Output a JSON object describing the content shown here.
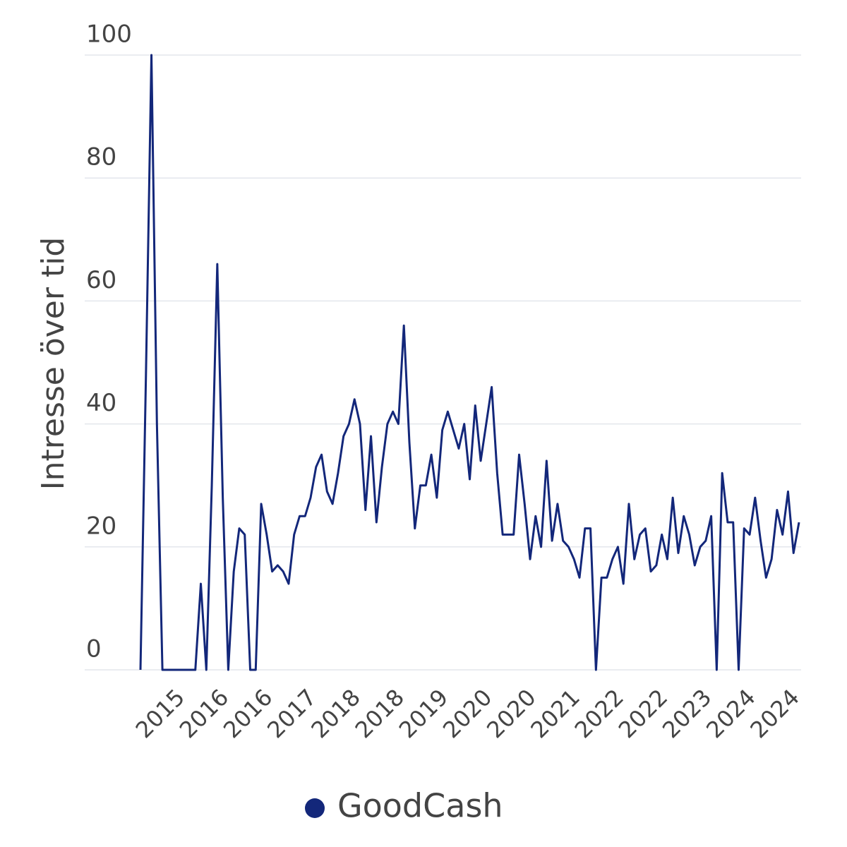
{
  "chart_data": {
    "type": "line",
    "y_label": "Intresse över tid",
    "categories": [
      null,
      null,
      null,
      null,
      null,
      null,
      null,
      "2015",
      null,
      null,
      null,
      null,
      null,
      null,
      null,
      "2016",
      null,
      null,
      null,
      null,
      null,
      null,
      null,
      "2016",
      null,
      null,
      null,
      null,
      null,
      null,
      null,
      "2017",
      null,
      null,
      null,
      null,
      null,
      null,
      null,
      "2018",
      null,
      null,
      null,
      null,
      null,
      null,
      null,
      "2018",
      null,
      null,
      null,
      null,
      null,
      null,
      null,
      "2019",
      null,
      null,
      null,
      null,
      null,
      null,
      null,
      "2020",
      null,
      null,
      null,
      null,
      null,
      null,
      null,
      "2020",
      null,
      null,
      null,
      null,
      null,
      null,
      null,
      "2021",
      null,
      null,
      null,
      null,
      null,
      null,
      null,
      "2022",
      null,
      null,
      null,
      null,
      null,
      null,
      null,
      "2022",
      null,
      null,
      null,
      null,
      null,
      null,
      null,
      "2023",
      null,
      null,
      null,
      null,
      null,
      null,
      null,
      "2024",
      null,
      null,
      null,
      null,
      null,
      null,
      null,
      "2024",
      null
    ],
    "series": [
      {
        "name": "GoodCash",
        "color": "#13277a",
        "values": [
          0,
          48,
          100,
          40,
          0,
          0,
          0,
          0,
          0,
          0,
          0,
          14,
          0,
          30,
          66,
          28,
          0,
          16,
          23,
          22,
          0,
          0,
          27,
          22,
          16,
          17,
          16,
          14,
          22,
          25,
          25,
          28,
          33,
          35,
          29,
          27,
          32,
          38,
          40,
          44,
          40,
          26,
          38,
          24,
          33,
          40,
          42,
          40,
          56,
          37,
          23,
          30,
          30,
          35,
          28,
          39,
          42,
          39,
          36,
          40,
          31,
          43,
          34,
          40,
          46,
          32,
          22,
          22,
          22,
          35,
          27,
          18,
          25,
          20,
          34,
          21,
          27,
          21,
          20,
          18,
          15,
          23,
          23,
          0,
          15,
          15,
          18,
          20,
          14,
          27,
          18,
          22,
          23,
          16,
          17,
          22,
          18,
          28,
          19,
          25,
          22,
          17,
          20,
          21,
          25,
          0,
          32,
          24,
          24,
          0,
          23,
          22,
          28,
          21,
          15,
          18,
          26,
          22,
          29,
          19,
          24
        ]
      }
    ],
    "ylim": [
      0,
      100
    ],
    "yticks": [
      0,
      20,
      40,
      60,
      80,
      100
    ],
    "grid": true
  }
}
